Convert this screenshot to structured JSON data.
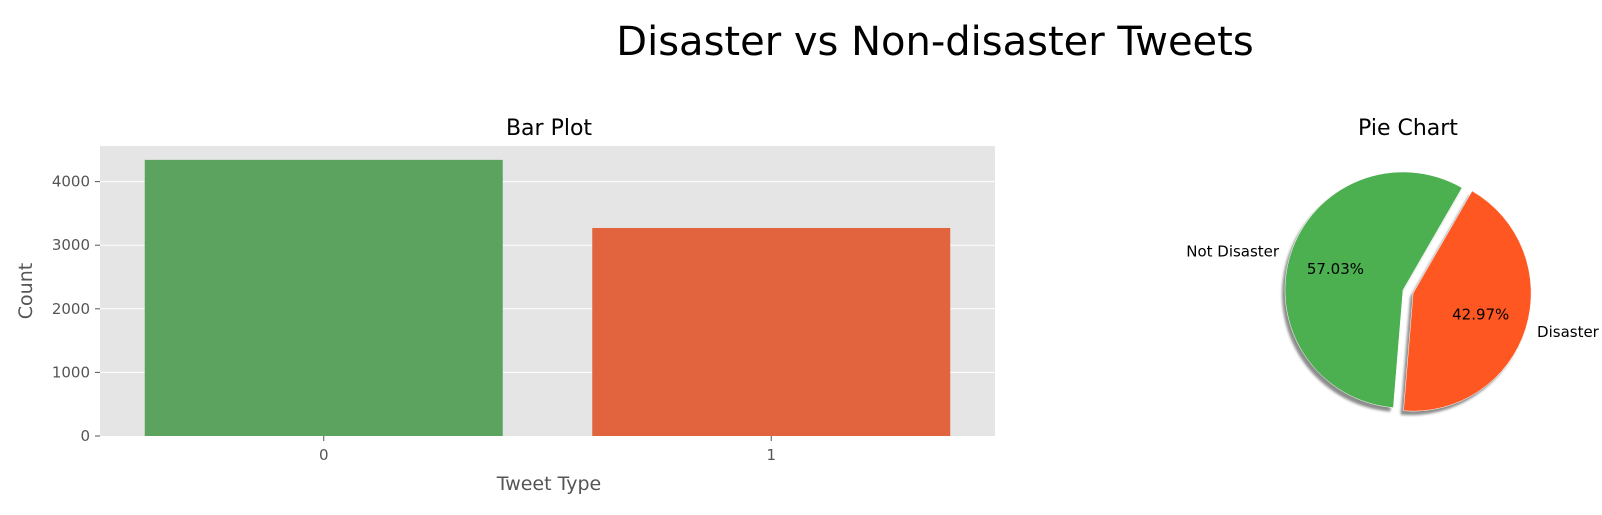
{
  "suptitle": "Disaster vs Non-disaster Tweets",
  "chart_data": [
    {
      "type": "bar",
      "title": "Bar Plot",
      "xlabel": "Tweet Type",
      "ylabel": "Count",
      "categories": [
        "0",
        "1"
      ],
      "values": [
        4342,
        3271
      ],
      "colors": [
        "#5ba35e",
        "#e1643f"
      ],
      "ylim": [
        0,
        4560
      ],
      "yticks": [
        0,
        1000,
        2000,
        3000,
        4000
      ],
      "grid": true,
      "background": "#e5e5e5"
    },
    {
      "type": "pie",
      "title": "Pie Chart",
      "labels": [
        "Not Disaster",
        "Disaster"
      ],
      "values": [
        57.03,
        42.97
      ],
      "pct_labels": [
        "57.03%",
        "42.97%"
      ],
      "colors": [
        "#4caf50",
        "#ff5722"
      ],
      "explode": [
        0,
        0.05
      ],
      "shadow": true
    }
  ]
}
